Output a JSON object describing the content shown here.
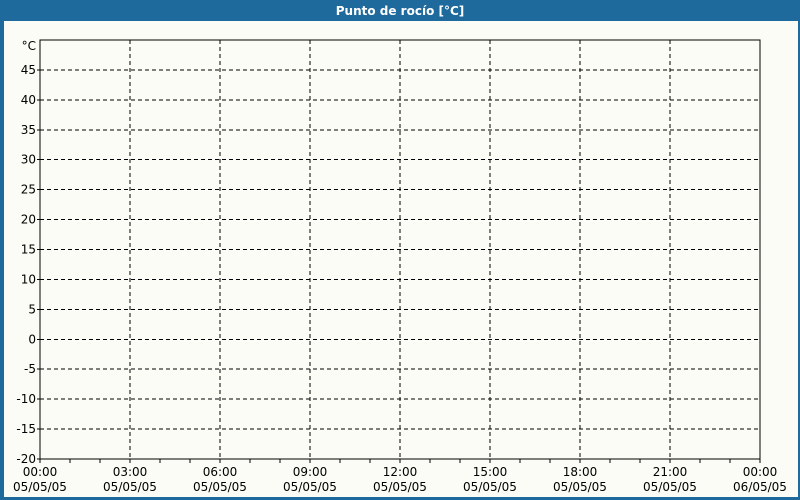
{
  "window": {
    "title": "Punto de rocío [°C]"
  },
  "colors": {
    "frame_blue": "#1e6a9d",
    "title_text": "#ffffff",
    "content_background": "#fbfcf5",
    "grid": "#000000",
    "label_text": "#000000"
  },
  "chart_data": {
    "type": "line",
    "title": "Punto de rocío [°C]",
    "xlabel": "",
    "ylabel": "°C",
    "ylim": [
      -20,
      50
    ],
    "grid": "dashed, on",
    "legend_position": "none",
    "series": [],
    "y_axis": {
      "unit_label": "°C",
      "min": -20,
      "max": 50,
      "tick_step": 5,
      "tick_labels": [
        45,
        40,
        35,
        30,
        25,
        20,
        15,
        10,
        5,
        0,
        -5,
        -10,
        -15,
        -20
      ]
    },
    "x_axis": {
      "major_tick_hours": 3,
      "minor_tick_hours": 1,
      "ticks": [
        {
          "time": "00:00",
          "date": "05/05/05"
        },
        {
          "time": "03:00",
          "date": "05/05/05"
        },
        {
          "time": "06:00",
          "date": "05/05/05"
        },
        {
          "time": "09:00",
          "date": "05/05/05"
        },
        {
          "time": "12:00",
          "date": "05/05/05"
        },
        {
          "time": "15:00",
          "date": "05/05/05"
        },
        {
          "time": "18:00",
          "date": "05/05/05"
        },
        {
          "time": "21:00",
          "date": "05/05/05"
        },
        {
          "time": "00:00",
          "date": "06/05/05"
        }
      ]
    }
  }
}
